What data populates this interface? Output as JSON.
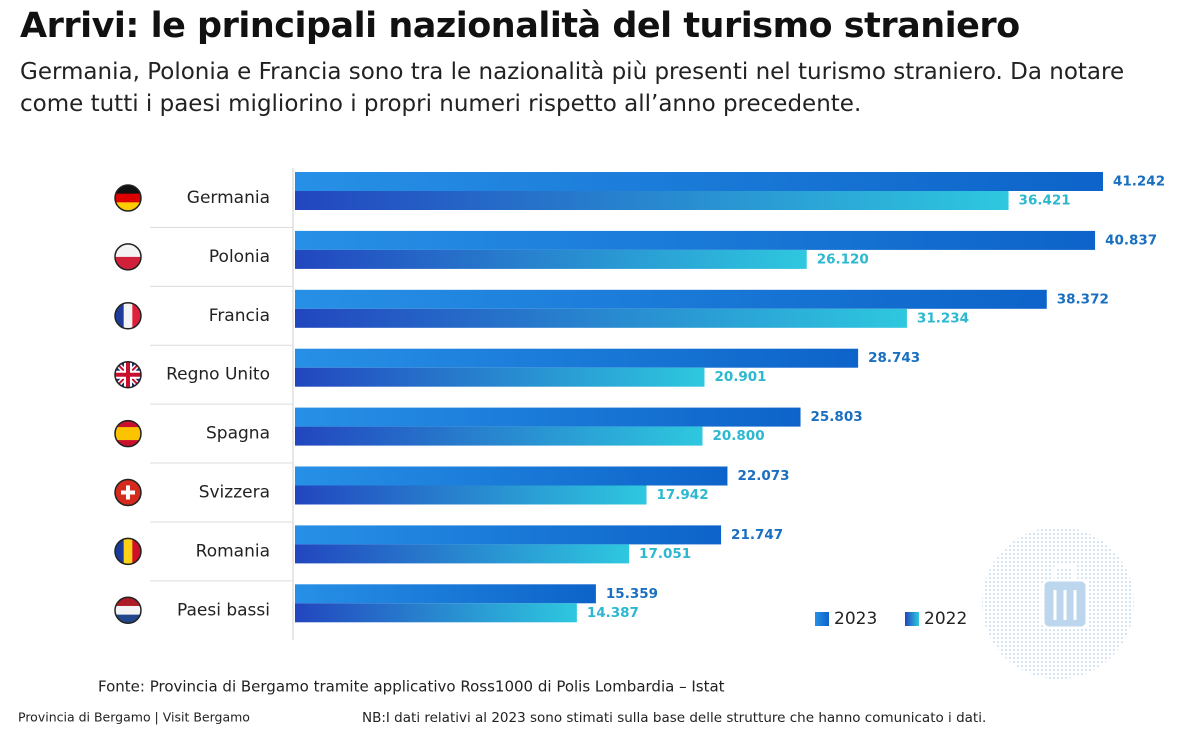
{
  "chart_data": {
    "type": "bar",
    "orientation": "horizontal",
    "title": "Arrivi: le principali nazionalità del turismo straniero",
    "subtitle": "Germania, Polonia e Francia sono tra le nazionalità più presenti nel turismo straniero. Da notare come tutti i paesi migliorino i propri numeri rispetto all’anno precedente.",
    "categories": [
      "Germania",
      "Polonia",
      "Francia",
      "Regno Unito",
      "Spagna",
      "Svizzera",
      "Romania",
      "Paesi bassi"
    ],
    "series": [
      {
        "name": "2023",
        "color": "#1580d8",
        "label_color": "#1a6fc0",
        "values": [
          41242,
          40837,
          38372,
          28743,
          25803,
          22073,
          21747,
          15359
        ],
        "value_labels": [
          "41.242",
          "40.837",
          "38.372",
          "28.743",
          "25.803",
          "22.073",
          "21.747",
          "15.359"
        ]
      },
      {
        "name": "2022",
        "color": "#2a5bd0",
        "label_color": "#2bb8d0",
        "values": [
          36421,
          26120,
          31234,
          20901,
          20800,
          17942,
          17051,
          14387
        ],
        "value_labels": [
          "36.421",
          "26.120",
          "31.234",
          "20.901",
          "20.800",
          "17.942",
          "17.051",
          "14.387"
        ]
      }
    ],
    "xlim": [
      0,
      41242
    ],
    "source": "Fonte: Provincia di Bergamo tramite applicativo Ross1000 di Polis Lombardia – Istat",
    "footer": "Provincia di Bergamo | Visit Bergamo",
    "note": "NB:I dati relativi al 2023 sono stimati sulla base delle strutture che hanno comunicato i dati."
  }
}
